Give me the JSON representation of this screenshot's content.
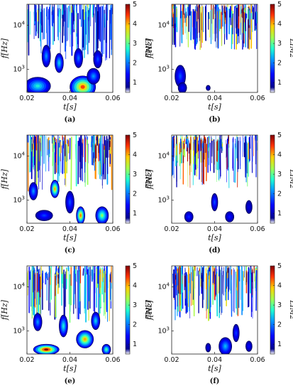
{
  "chart_data": [
    {
      "type": "heatmap",
      "caption": "(a)",
      "xlabel": "t[s]",
      "ylabel": "f[Hz]",
      "colorbar_label": "LIM2",
      "xlim": [
        0.02,
        0.06
      ],
      "x_ticks": [
        "0.02",
        "0.04",
        "0.06"
      ],
      "ylim": [
        300,
        30000
      ],
      "yscale": "log",
      "y_ticks": [
        "10",
        "10"
      ],
      "y_tick_exponents": [
        "3",
        "4"
      ],
      "clim": [
        0.5,
        5
      ],
      "c_ticks": [
        "1",
        "2",
        "3",
        "4",
        "5"
      ],
      "colormap": "jet",
      "blobs": [
        {
          "t": 0.046,
          "f": 400,
          "w": 0.006,
          "h": 0.25,
          "v": 4.4
        },
        {
          "t": 0.025,
          "f": 420,
          "w": 0.006,
          "h": 0.2,
          "v": 2.6
        },
        {
          "t": 0.051,
          "f": 700,
          "w": 0.003,
          "h": 0.18,
          "v": 2.0
        },
        {
          "t": 0.035,
          "f": 1400,
          "w": 0.002,
          "h": 0.22,
          "v": 2.4
        },
        {
          "t": 0.029,
          "f": 2000,
          "w": 0.002,
          "h": 0.25,
          "v": 2.0
        },
        {
          "t": 0.044,
          "f": 1800,
          "w": 0.002,
          "h": 0.22,
          "v": 1.8
        },
        {
          "t": 0.053,
          "f": 1700,
          "w": 0.002,
          "h": 0.2,
          "v": 1.6
        }
      ],
      "streak_density": 0.85,
      "streak_floor_f": 1500,
      "streak_vmax": 2.8
    },
    {
      "type": "heatmap",
      "caption": "(b)",
      "xlabel": "t[s]",
      "ylabel": "f[Hz]",
      "colorbar_label": "LIM2",
      "xlim": [
        0.02,
        0.06
      ],
      "x_ticks": [
        "0.02",
        "0.04",
        "0.06"
      ],
      "ylim": [
        300,
        30000
      ],
      "yscale": "log",
      "y_ticks": [
        "10",
        "10"
      ],
      "y_tick_exponents": [
        "3",
        "4"
      ],
      "clim": [
        0.5,
        5
      ],
      "c_ticks": [
        "1",
        "2",
        "3",
        "4",
        "5"
      ],
      "colormap": "jet",
      "blobs": [
        {
          "t": 0.024,
          "f": 700,
          "w": 0.0025,
          "h": 0.25,
          "v": 1.6
        },
        {
          "t": 0.025,
          "f": 380,
          "w": 0.002,
          "h": 0.12,
          "v": 1.2
        },
        {
          "t": 0.037,
          "f": 380,
          "w": 0.001,
          "h": 0.06,
          "v": 0.9
        }
      ],
      "streak_density": 1.0,
      "streak_floor_f": 2800,
      "streak_vmax": 5.0
    },
    {
      "type": "heatmap",
      "caption": "(c)",
      "xlabel": "t[s]",
      "ylabel": "f[Hz]",
      "colorbar_label": "LIM2",
      "xlim": [
        0.02,
        0.06
      ],
      "x_ticks": [
        "0.02",
        "0.04",
        "0.06"
      ],
      "ylim": [
        300,
        30000
      ],
      "yscale": "log",
      "y_ticks": [
        "10",
        "10"
      ],
      "y_tick_exponents": [
        "3",
        "4"
      ],
      "clim": [
        0.5,
        5
      ],
      "c_ticks": [
        "1",
        "2",
        "3",
        "4",
        "5"
      ],
      "colormap": "jet",
      "blobs": [
        {
          "t": 0.045,
          "f": 450,
          "w": 0.002,
          "h": 0.2,
          "v": 4.2
        },
        {
          "t": 0.055,
          "f": 450,
          "w": 0.003,
          "h": 0.2,
          "v": 3.2
        },
        {
          "t": 0.028,
          "f": 450,
          "w": 0.004,
          "h": 0.12,
          "v": 1.5
        },
        {
          "t": 0.04,
          "f": 900,
          "w": 0.002,
          "h": 0.25,
          "v": 1.6
        },
        {
          "t": 0.033,
          "f": 1800,
          "w": 0.002,
          "h": 0.2,
          "v": 4.0
        },
        {
          "t": 0.023,
          "f": 1600,
          "w": 0.002,
          "h": 0.2,
          "v": 2.0
        }
      ],
      "streak_density": 0.95,
      "streak_floor_f": 1600,
      "streak_vmax": 4.5
    },
    {
      "type": "heatmap",
      "caption": "(d)",
      "xlabel": "t[s]",
      "ylabel": "f[Hz]",
      "colorbar_label": "LIM2",
      "xlim": [
        0.02,
        0.06
      ],
      "x_ticks": [
        "0.02",
        "0.04",
        "0.06"
      ],
      "ylim": [
        300,
        30000
      ],
      "yscale": "log",
      "y_ticks": [
        "10",
        "10"
      ],
      "y_tick_exponents": [
        "3",
        "4"
      ],
      "clim": [
        0.5,
        5
      ],
      "c_ticks": [
        "1",
        "2",
        "3",
        "4",
        "5"
      ],
      "colormap": "jet",
      "blobs": [
        {
          "t": 0.04,
          "f": 900,
          "w": 0.0015,
          "h": 0.2,
          "v": 1.6
        },
        {
          "t": 0.028,
          "f": 420,
          "w": 0.002,
          "h": 0.12,
          "v": 1.4
        },
        {
          "t": 0.047,
          "f": 420,
          "w": 0.002,
          "h": 0.12,
          "v": 1.3
        },
        {
          "t": 0.056,
          "f": 700,
          "w": 0.0015,
          "h": 0.15,
          "v": 1.0
        }
      ],
      "streak_density": 0.9,
      "streak_floor_f": 1900,
      "streak_vmax": 4.8
    },
    {
      "type": "heatmap",
      "caption": "(e)",
      "xlabel": "t[s]",
      "ylabel": "f[Hz]",
      "colorbar_label": "LIM2",
      "xlim": [
        0.02,
        0.06
      ],
      "x_ticks": [
        "0.02",
        "0.04",
        "0.06"
      ],
      "ylim": [
        300,
        30000
      ],
      "yscale": "log",
      "y_ticks": [
        "10",
        "10"
      ],
      "y_tick_exponents": [
        "3",
        "4"
      ],
      "clim": [
        0.5,
        5
      ],
      "c_ticks": [
        "1",
        "2",
        "3",
        "4",
        "5"
      ],
      "colormap": "jet",
      "blobs": [
        {
          "t": 0.029,
          "f": 380,
          "w": 0.006,
          "h": 0.12,
          "v": 5.0
        },
        {
          "t": 0.047,
          "f": 650,
          "w": 0.004,
          "h": 0.2,
          "v": 4.0
        },
        {
          "t": 0.057,
          "f": 380,
          "w": 0.002,
          "h": 0.12,
          "v": 3.0
        },
        {
          "t": 0.037,
          "f": 1300,
          "w": 0.002,
          "h": 0.25,
          "v": 2.6
        },
        {
          "t": 0.025,
          "f": 1600,
          "w": 0.002,
          "h": 0.2,
          "v": 2.0
        },
        {
          "t": 0.052,
          "f": 1700,
          "w": 0.002,
          "h": 0.2,
          "v": 2.4
        }
      ],
      "streak_density": 0.9,
      "streak_floor_f": 1500,
      "streak_vmax": 4.2
    },
    {
      "type": "heatmap",
      "caption": "(f)",
      "xlabel": "t[s]",
      "ylabel": "f[Hz]",
      "colorbar_label": "LIM2",
      "xlim": [
        0.02,
        0.06
      ],
      "x_ticks": [
        "0.02",
        "0.04",
        "0.06"
      ],
      "ylim": [
        300,
        30000
      ],
      "yscale": "log",
      "y_ticks": [
        "10",
        "10"
      ],
      "y_tick_exponents": [
        "3",
        "4"
      ],
      "clim": [
        0.5,
        5
      ],
      "c_ticks": [
        "1",
        "2",
        "3",
        "4",
        "5"
      ],
      "colormap": "jet",
      "blobs": [
        {
          "t": 0.045,
          "f": 450,
          "w": 0.003,
          "h": 0.2,
          "v": 2.2
        },
        {
          "t": 0.05,
          "f": 900,
          "w": 0.0015,
          "h": 0.2,
          "v": 1.5
        },
        {
          "t": 0.037,
          "f": 420,
          "w": 0.0012,
          "h": 0.1,
          "v": 1.0
        },
        {
          "t": 0.056,
          "f": 450,
          "w": 0.0015,
          "h": 0.12,
          "v": 1.2
        }
      ],
      "streak_density": 0.95,
      "streak_floor_f": 1700,
      "streak_vmax": 4.8
    }
  ]
}
